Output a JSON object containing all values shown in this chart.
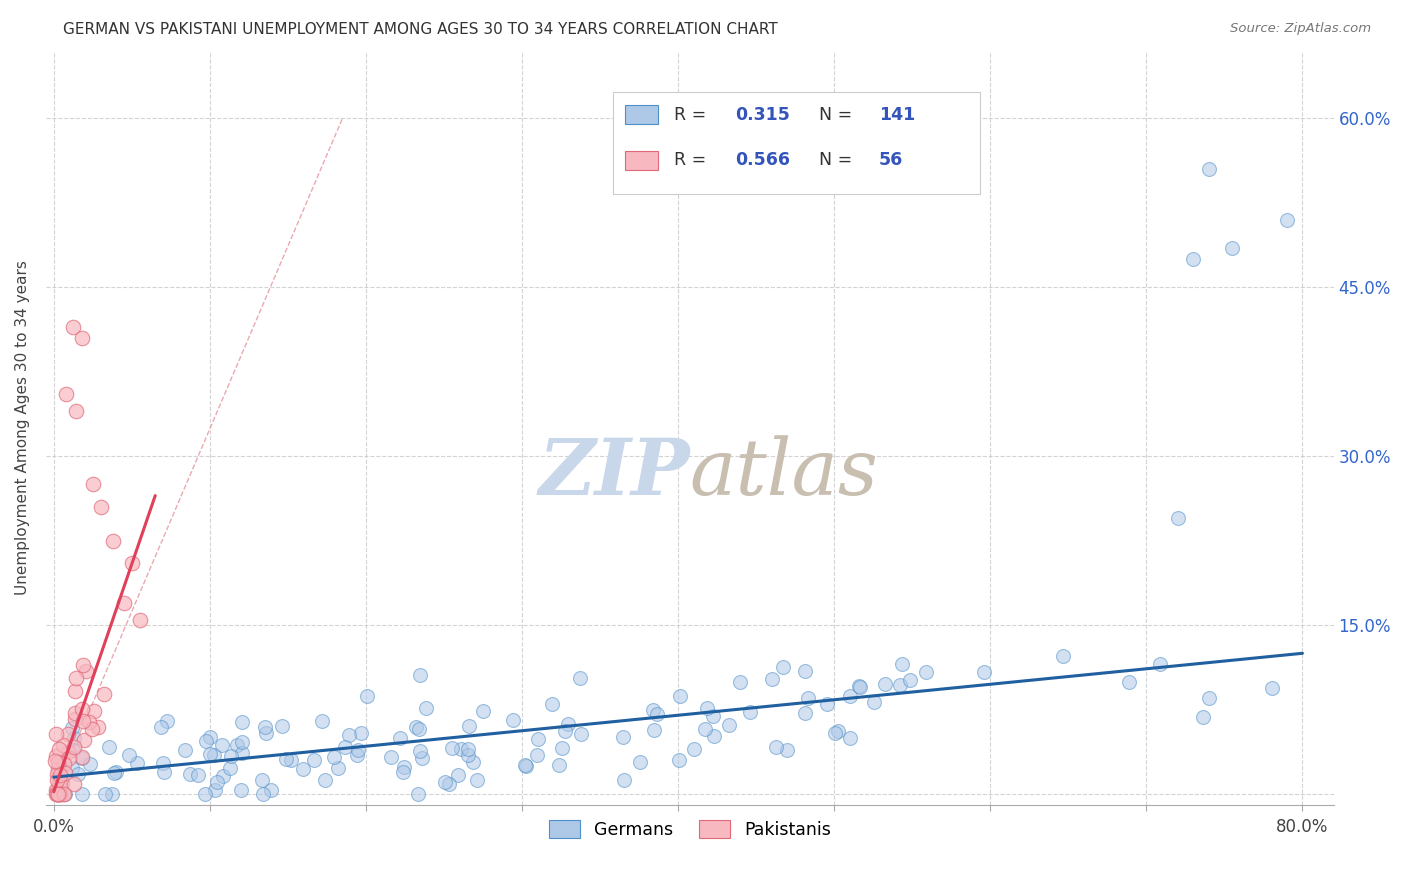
{
  "title": "GERMAN VS PAKISTANI UNEMPLOYMENT AMONG AGES 30 TO 34 YEARS CORRELATION CHART",
  "source": "Source: ZipAtlas.com",
  "ylabel": "Unemployment Among Ages 30 to 34 years",
  "xlim": [
    -0.005,
    0.82
  ],
  "ylim": [
    -0.01,
    0.66
  ],
  "xtick_positions": [
    0.0,
    0.1,
    0.2,
    0.3,
    0.4,
    0.5,
    0.6,
    0.7,
    0.8
  ],
  "ytick_positions": [
    0.0,
    0.15,
    0.3,
    0.45,
    0.6
  ],
  "german_R": 0.315,
  "german_N": 141,
  "pakistani_R": 0.566,
  "pakistani_N": 56,
  "blue_face": "#aec8e8",
  "blue_edge": "#5090c8",
  "pink_face": "#f8b8c0",
  "pink_edge": "#e06878",
  "blue_line_color": "#2060a0",
  "pink_line_color": "#e0405a",
  "pink_dash_color": "#e8a0a8",
  "watermark_zip_color": "#c8d8ea",
  "watermark_atlas_color": "#c8bfb0",
  "background_color": "#ffffff",
  "title_fontsize": 11,
  "legend_text_color": "#3355bb",
  "legend_label_color": "#333333"
}
